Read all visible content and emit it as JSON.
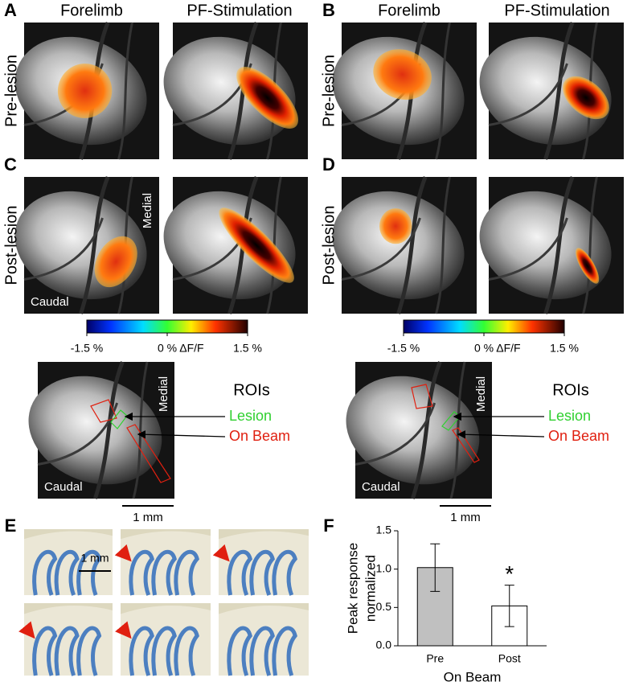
{
  "panel_labels": [
    "A",
    "B",
    "C",
    "D",
    "E",
    "F"
  ],
  "imaging": [
    {
      "columns": [
        "Forelimb",
        "PF-Stimulation"
      ],
      "rows": [
        "Pre-lesion",
        "Post-lesion"
      ]
    },
    {
      "columns": [
        "Forelimb",
        "PF-Stimulation"
      ],
      "rows": [
        "Pre-lesion",
        "Post-lesion"
      ]
    }
  ],
  "c_orientation": {
    "medial": "Medial",
    "caudal": "Caudal"
  },
  "colorbars": [
    {
      "lim": [
        -1.5,
        1.5
      ],
      "ticks": [
        {
          "value": -1.5,
          "label": "-1.5 %"
        },
        {
          "value": 0,
          "label": "0 % ΔF/F"
        },
        {
          "value": 1.5,
          "label": "1.5 %"
        }
      ]
    },
    {
      "lim": [
        -1.5,
        1.5
      ],
      "ticks": [
        {
          "value": -1.5,
          "label": "-1.5 %"
        },
        {
          "value": 0,
          "label": "0 % ΔF/F"
        },
        {
          "value": 1.5,
          "label": "1.5 %"
        }
      ]
    }
  ],
  "roi_panels": [
    {
      "medial": "Medial",
      "caudal": "Caudal",
      "title": "ROIs",
      "lesion": "Lesion",
      "on_beam": "On Beam",
      "scale": "1 mm"
    },
    {
      "medial": "Medial",
      "caudal": "Caudal",
      "title": "ROIs",
      "lesion": "Lesion",
      "on_beam": "On Beam",
      "scale": "1 mm"
    }
  ],
  "histology": {
    "scale": "1 mm"
  },
  "chart_data": {
    "type": "bar",
    "y_label": [
      "Peak response",
      "normalized"
    ],
    "x_label": "On Beam",
    "categories": [
      "Pre",
      "Post"
    ],
    "values": [
      1.02,
      0.52
    ],
    "errors": [
      0.31,
      0.27
    ],
    "colors": [
      "#c0c0c0",
      "#ffffff"
    ],
    "annotations": [
      {
        "category": 1,
        "text": "*"
      }
    ],
    "ylim": [
      0,
      1.5
    ],
    "yticks": [
      {
        "value": 0,
        "label": "0.0"
      },
      0.5,
      {
        "value": 1,
        "label": "1.0"
      },
      1.5
    ]
  }
}
